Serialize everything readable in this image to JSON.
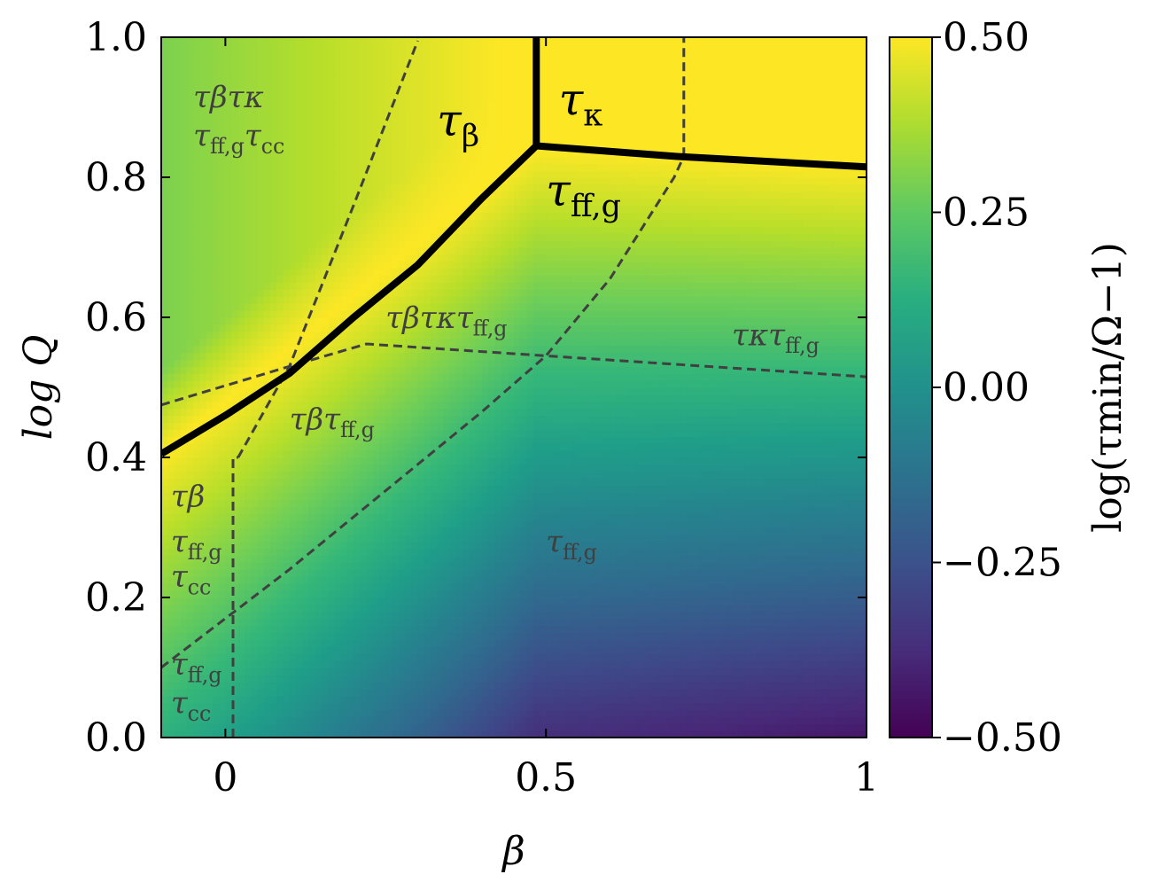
{
  "chart_data": {
    "type": "heatmap",
    "xlabel": "β",
    "ylabel": "log Q",
    "colorbar_label": "log(τmin/Ω−1)",
    "xlim": [
      -0.1,
      1.0
    ],
    "ylim": [
      0.0,
      1.0
    ],
    "x_ticks": [
      {
        "value": 0,
        "label": "0"
      },
      {
        "value": 0.5,
        "label": "0.5"
      },
      {
        "value": 1,
        "label": "1"
      }
    ],
    "y_ticks": [
      {
        "value": 0.0,
        "label": "0.0"
      },
      {
        "value": 0.2,
        "label": "0.2"
      },
      {
        "value": 0.4,
        "label": "0.4"
      },
      {
        "value": 0.6,
        "label": "0.6"
      },
      {
        "value": 0.8,
        "label": "0.8"
      },
      {
        "value": 1.0,
        "label": "1.0"
      }
    ],
    "colorbar": {
      "colormap": "viridis",
      "range": [
        -0.5,
        0.5
      ],
      "ticks": [
        {
          "value": 0.5,
          "label": "0.50"
        },
        {
          "value": 0.25,
          "label": "0.25"
        },
        {
          "value": 0.0,
          "label": "0.00"
        },
        {
          "value": -0.25,
          "label": "−0.25"
        },
        {
          "value": -0.5,
          "label": "−0.50"
        }
      ]
    },
    "solid_boundaries": [
      {
        "x": [
          -0.1,
          0.0,
          0.1,
          0.2,
          0.3,
          0.4,
          0.485
        ],
        "y": [
          0.405,
          0.46,
          0.52,
          0.6,
          0.675,
          0.77,
          0.845
        ]
      },
      {
        "x": [
          0.485,
          0.485
        ],
        "y": [
          0.845,
          1.0
        ]
      },
      {
        "x": [
          0.485,
          0.7,
          1.0
        ],
        "y": [
          0.845,
          0.83,
          0.815
        ]
      }
    ],
    "dashed_boundaries": [
      {
        "x": [
          0.012,
          0.012,
          0.02
        ],
        "y": [
          0.0,
          0.4,
          0.4
        ]
      },
      {
        "x": [
          0.02,
          0.1,
          0.2,
          0.3
        ],
        "y": [
          0.4,
          0.53,
          0.76,
          0.995
        ]
      },
      {
        "x": [
          -0.1,
          0.1,
          0.22,
          0.5,
          1.0
        ],
        "y": [
          0.475,
          0.53,
          0.562,
          0.545,
          0.515
        ]
      },
      {
        "x": [
          -0.1,
          0.0,
          0.1,
          0.2,
          0.3,
          0.4,
          0.5,
          0.6,
          0.7,
          0.715
        ],
        "y": [
          0.1,
          0.17,
          0.24,
          0.315,
          0.39,
          0.465,
          0.545,
          0.655,
          0.8,
          0.83
        ]
      },
      {
        "x": [
          0.715,
          0.715
        ],
        "y": [
          0.83,
          1.0
        ]
      }
    ],
    "regions": [
      {
        "base": "τ",
        "sub": "β",
        "x": 0.33,
        "y": 0.86,
        "size": 50,
        "main": true
      },
      {
        "base": "τ",
        "sub": "κ",
        "x": 0.52,
        "y": 0.89,
        "size": 50,
        "main": true
      },
      {
        "base": "τ",
        "sub": "ff,g",
        "x": 0.5,
        "y": 0.76,
        "size": 50,
        "main": true
      },
      {
        "base": "τβτκ",
        "sub": "",
        "x": -0.05,
        "y": 0.9,
        "size": 34,
        "main": false
      },
      {
        "base": "τ",
        "sub": "ff,g",
        "base2": "τ",
        "sub2": "cc",
        "x": -0.05,
        "y": 0.845,
        "size": 34,
        "main": false
      },
      {
        "base": "τβτκτ",
        "sub": "ff,g",
        "x": 0.25,
        "y": 0.585,
        "size": 34,
        "main": false
      },
      {
        "base": "τκτ",
        "sub": "ff,g",
        "x": 0.79,
        "y": 0.56,
        "size": 34,
        "main": false
      },
      {
        "base": "τβτ",
        "sub": "ff,g",
        "x": 0.1,
        "y": 0.44,
        "size": 34,
        "main": false
      },
      {
        "base": "τβ",
        "sub": "",
        "x": -0.085,
        "y": 0.33,
        "size": 34,
        "main": false
      },
      {
        "base": "τ",
        "sub": "ff,g",
        "x": -0.085,
        "y": 0.265,
        "size": 34,
        "main": false
      },
      {
        "base": "τ",
        "sub": "cc",
        "x": -0.085,
        "y": 0.215,
        "size": 34,
        "main": false
      },
      {
        "base": "τ",
        "sub": "ff,g",
        "x": 0.5,
        "y": 0.265,
        "size": 34,
        "main": false
      },
      {
        "base": "τ",
        "sub": "ff,g",
        "x": -0.085,
        "y": 0.09,
        "size": 34,
        "main": false
      },
      {
        "base": "τ",
        "sub": "cc",
        "x": -0.085,
        "y": 0.035,
        "size": 34,
        "main": false
      }
    ]
  }
}
